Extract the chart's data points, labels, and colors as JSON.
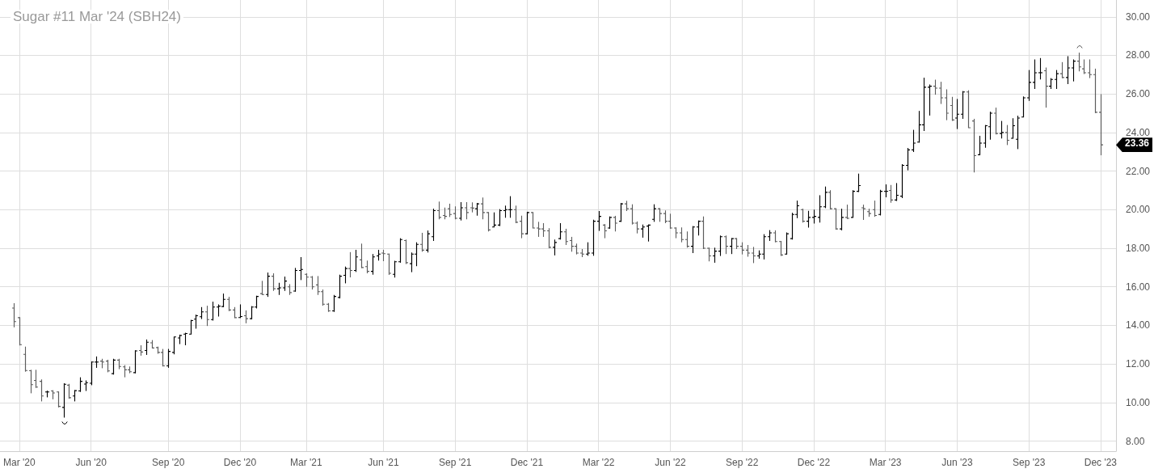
{
  "chart_data": {
    "type": "candlestick",
    "title": "Sugar #11 Mar '24 (SBH24)",
    "categories": [
      null,
      "Mar '20",
      null,
      null,
      null,
      null,
      null,
      null,
      null,
      null,
      null,
      null,
      null,
      null,
      "Jun '20",
      null,
      null,
      null,
      null,
      null,
      null,
      null,
      null,
      null,
      null,
      null,
      null,
      null,
      "Sep '20",
      null,
      null,
      null,
      null,
      null,
      null,
      null,
      null,
      null,
      null,
      null,
      null,
      "Dec '20",
      null,
      null,
      null,
      null,
      null,
      null,
      null,
      null,
      null,
      null,
      null,
      "Mar '21",
      null,
      null,
      null,
      null,
      null,
      null,
      null,
      null,
      null,
      null,
      null,
      null,
      null,
      "Jun '21",
      null,
      null,
      null,
      null,
      null,
      null,
      null,
      null,
      null,
      null,
      null,
      null,
      "Sep '21",
      null,
      null,
      null,
      null,
      null,
      null,
      null,
      null,
      null,
      null,
      null,
      null,
      "Dec '21",
      null,
      null,
      null,
      null,
      null,
      null,
      null,
      null,
      null,
      null,
      null,
      null,
      "Mar '22",
      null,
      null,
      null,
      null,
      null,
      null,
      null,
      null,
      null,
      null,
      null,
      null,
      "Jun '22",
      null,
      null,
      null,
      null,
      null,
      null,
      null,
      null,
      null,
      null,
      null,
      null,
      "Sep '22",
      null,
      null,
      null,
      null,
      null,
      null,
      null,
      null,
      null,
      null,
      null,
      null,
      "Dec '22",
      null,
      null,
      null,
      null,
      null,
      null,
      null,
      null,
      null,
      null,
      null,
      null,
      "Mar '23",
      null,
      null,
      null,
      null,
      null,
      null,
      null,
      null,
      null,
      null,
      null,
      null,
      "Jun '23",
      null,
      null,
      null,
      null,
      null,
      null,
      null,
      null,
      null,
      null,
      null,
      null,
      "Sep '23",
      null,
      null,
      null,
      null,
      null,
      null,
      null,
      null,
      null,
      null,
      null,
      null,
      "Dec '23"
    ],
    "ohlc": [
      [
        14.9,
        15.15,
        13.9,
        14.2
      ],
      [
        14.4,
        14.42,
        12.96,
        13.0
      ],
      [
        12.5,
        12.9,
        11.6,
        11.66
      ],
      [
        11.65,
        11.7,
        10.48,
        10.93
      ],
      [
        11.15,
        11.7,
        10.76,
        10.8
      ],
      [
        11.1,
        11.2,
        10.06,
        10.34
      ],
      [
        10.55,
        10.62,
        10.27,
        10.55
      ],
      [
        10.6,
        10.64,
        10.17,
        10.5
      ],
      [
        10.55,
        10.57,
        9.75,
        9.8
      ],
      [
        9.75,
        11.0,
        9.22,
        10.95
      ],
      [
        10.9,
        10.97,
        10.2,
        10.25
      ],
      [
        10.34,
        10.64,
        10.06,
        10.62
      ],
      [
        10.6,
        11.31,
        10.55,
        11.1
      ],
      [
        10.96,
        11.15,
        10.6,
        11.03
      ],
      [
        11.0,
        12.13,
        10.9,
        12.1
      ],
      [
        12.1,
        12.39,
        11.8,
        12.1
      ],
      [
        12.15,
        12.27,
        11.78,
        12.1
      ],
      [
        12.15,
        12.22,
        11.57,
        11.64
      ],
      [
        11.5,
        12.27,
        11.45,
        12.2
      ],
      [
        12.2,
        12.27,
        11.73,
        11.87
      ],
      [
        11.85,
        11.94,
        11.31,
        11.7
      ],
      [
        11.7,
        11.87,
        11.52,
        11.6
      ],
      [
        11.55,
        12.71,
        11.52,
        12.68
      ],
      [
        12.7,
        12.97,
        12.43,
        12.62
      ],
      [
        12.7,
        13.27,
        12.47,
        13.13
      ],
      [
        13.1,
        13.24,
        12.81,
        12.83
      ],
      [
        12.85,
        12.9,
        12.53,
        12.6
      ],
      [
        12.6,
        12.78,
        11.87,
        11.9
      ],
      [
        11.9,
        12.78,
        11.8,
        12.65
      ],
      [
        12.6,
        13.41,
        12.5,
        13.4
      ],
      [
        13.35,
        13.52,
        13.03,
        13.48
      ],
      [
        13.55,
        13.62,
        12.97,
        13.58
      ],
      [
        13.55,
        14.29,
        13.55,
        14.25
      ],
      [
        14.32,
        14.56,
        13.83,
        14.5
      ],
      [
        14.45,
        14.95,
        14.33,
        14.7
      ],
      [
        14.7,
        15.02,
        13.97,
        14.3
      ],
      [
        14.3,
        15.23,
        14.25,
        14.95
      ],
      [
        14.95,
        15.09,
        14.46,
        15.0
      ],
      [
        14.98,
        15.65,
        14.95,
        15.35
      ],
      [
        15.35,
        15.48,
        14.74,
        14.8
      ],
      [
        14.8,
        14.95,
        14.39,
        14.4
      ],
      [
        14.41,
        15.09,
        14.39,
        14.46
      ],
      [
        14.5,
        14.78,
        14.11,
        14.35
      ],
      [
        14.35,
        15.0,
        14.32,
        14.95
      ],
      [
        14.95,
        15.54,
        14.88,
        15.5
      ],
      [
        15.65,
        16.31,
        15.58,
        15.6
      ],
      [
        15.6,
        16.74,
        15.48,
        16.55
      ],
      [
        16.55,
        16.7,
        15.79,
        15.9
      ],
      [
        15.9,
        16.21,
        15.58,
        15.95
      ],
      [
        15.95,
        16.53,
        15.79,
        16.3
      ],
      [
        16.0,
        16.14,
        15.58,
        15.7
      ],
      [
        15.78,
        16.98,
        15.75,
        16.85
      ],
      [
        16.85,
        17.54,
        16.35,
        16.9
      ],
      [
        16.65,
        16.7,
        16.0,
        16.5
      ],
      [
        16.5,
        16.56,
        15.86,
        16.0
      ],
      [
        16.1,
        16.56,
        15.58,
        15.75
      ],
      [
        15.75,
        15.86,
        15.02,
        15.1
      ],
      [
        15.1,
        15.16,
        14.7,
        14.75
      ],
      [
        14.75,
        15.58,
        14.7,
        15.5
      ],
      [
        15.45,
        16.63,
        15.4,
        16.55
      ],
      [
        16.6,
        17.05,
        16.18,
        16.95
      ],
      [
        16.95,
        17.8,
        16.49,
        16.85
      ],
      [
        16.85,
        17.92,
        16.77,
        17.55
      ],
      [
        17.4,
        18.24,
        16.98,
        17.0
      ],
      [
        17.05,
        17.36,
        16.7,
        16.8
      ],
      [
        16.8,
        17.7,
        16.63,
        17.55
      ],
      [
        17.6,
        17.92,
        17.36,
        17.7
      ],
      [
        17.75,
        17.92,
        17.33,
        17.72
      ],
      [
        17.7,
        17.72,
        16.62,
        16.7
      ],
      [
        16.65,
        17.35,
        16.48,
        17.3
      ],
      [
        17.3,
        18.52,
        17.25,
        18.45
      ],
      [
        18.4,
        18.45,
        17.18,
        17.25
      ],
      [
        17.2,
        17.78,
        16.76,
        17.7
      ],
      [
        17.7,
        18.31,
        17.07,
        18.2
      ],
      [
        18.2,
        18.8,
        17.82,
        17.9
      ],
      [
        17.9,
        18.92,
        17.78,
        18.75
      ],
      [
        18.6,
        20.05,
        18.38,
        19.95
      ],
      [
        19.95,
        20.42,
        19.5,
        19.6
      ],
      [
        19.7,
        20.11,
        19.5,
        19.65
      ],
      [
        20.05,
        20.31,
        19.62,
        19.75
      ],
      [
        19.8,
        20.17,
        19.5,
        19.55
      ],
      [
        19.55,
        20.39,
        19.44,
        20.1
      ],
      [
        20.1,
        20.39,
        19.5,
        19.85
      ],
      [
        20.1,
        20.38,
        19.86,
        20.08
      ],
      [
        20.05,
        20.35,
        19.69,
        20.3
      ],
      [
        20.3,
        20.63,
        19.5,
        19.85
      ],
      [
        19.85,
        19.86,
        18.87,
        18.95
      ],
      [
        19.1,
        19.86,
        19.09,
        19.2
      ],
      [
        19.2,
        20.03,
        19.15,
        19.95
      ],
      [
        19.95,
        20.21,
        19.58,
        20.0
      ],
      [
        20.0,
        20.7,
        19.58,
        20.0
      ],
      [
        20.0,
        20.21,
        19.3,
        19.35
      ],
      [
        19.4,
        19.69,
        18.52,
        18.75
      ],
      [
        18.75,
        19.89,
        18.73,
        19.85
      ],
      [
        19.85,
        19.86,
        19.04,
        19.05
      ],
      [
        19.05,
        19.37,
        18.59,
        19.0
      ],
      [
        19.0,
        19.3,
        18.59,
        18.9
      ],
      [
        18.9,
        19.04,
        18.0,
        18.05
      ],
      [
        18.05,
        18.45,
        17.63,
        18.3
      ],
      [
        18.5,
        19.3,
        18.45,
        18.85
      ],
      [
        18.85,
        19.01,
        18.17,
        18.35
      ],
      [
        18.4,
        18.59,
        17.82,
        18.1
      ],
      [
        18.1,
        18.24,
        17.68,
        17.75
      ],
      [
        17.75,
        17.96,
        17.54,
        17.7
      ],
      [
        17.7,
        18.31,
        17.61,
        17.75
      ],
      [
        17.75,
        19.48,
        17.61,
        19.4
      ],
      [
        19.4,
        19.93,
        18.9,
        19.65
      ],
      [
        19.2,
        19.25,
        18.52,
        18.9
      ],
      [
        19.05,
        19.65,
        19.01,
        19.6
      ],
      [
        19.6,
        19.68,
        18.87,
        19.3
      ],
      [
        19.4,
        20.35,
        19.37,
        20.3
      ],
      [
        20.3,
        20.46,
        19.93,
        20.05
      ],
      [
        20.05,
        20.28,
        19.23,
        19.3
      ],
      [
        19.3,
        19.39,
        18.77,
        19.0
      ],
      [
        19.0,
        19.23,
        18.55,
        19.1
      ],
      [
        19.15,
        19.23,
        18.35,
        19.2
      ],
      [
        19.5,
        20.28,
        19.37,
        20.05
      ],
      [
        20.05,
        20.07,
        19.37,
        19.8
      ],
      [
        19.8,
        19.96,
        19.3,
        19.4
      ],
      [
        19.4,
        19.79,
        19.01,
        19.05
      ],
      [
        19.05,
        19.08,
        18.52,
        18.8
      ],
      [
        18.8,
        19.08,
        18.31,
        18.45
      ],
      [
        18.45,
        18.87,
        18.03,
        18.1
      ],
      [
        18.1,
        19.15,
        17.75,
        19.1
      ],
      [
        19.1,
        19.44,
        18.66,
        19.4
      ],
      [
        19.4,
        19.65,
        17.96,
        18.0
      ],
      [
        18.0,
        18.03,
        17.32,
        17.6
      ],
      [
        17.6,
        18.03,
        17.25,
        17.85
      ],
      [
        17.85,
        18.66,
        17.6,
        18.6
      ],
      [
        18.6,
        18.66,
        17.7,
        18.1
      ],
      [
        18.1,
        18.52,
        17.7,
        18.5
      ],
      [
        18.5,
        18.52,
        17.96,
        18.1
      ],
      [
        18.1,
        18.31,
        17.68,
        17.9
      ],
      [
        17.9,
        18.17,
        17.56,
        17.75
      ],
      [
        17.75,
        18.07,
        17.23,
        17.6
      ],
      [
        17.6,
        17.89,
        17.46,
        17.7
      ],
      [
        17.7,
        18.73,
        17.42,
        18.6
      ],
      [
        18.6,
        18.94,
        18.38,
        18.8
      ],
      [
        18.8,
        18.93,
        18.31,
        18.35
      ],
      [
        18.35,
        18.38,
        17.6,
        17.65
      ],
      [
        17.7,
        18.82,
        17.68,
        18.75
      ],
      [
        18.5,
        19.84,
        18.45,
        19.75
      ],
      [
        19.75,
        20.47,
        19.56,
        20.2
      ],
      [
        20.0,
        20.05,
        19.33,
        19.4
      ],
      [
        19.4,
        19.94,
        19.07,
        19.6
      ],
      [
        19.6,
        20.0,
        19.28,
        19.65
      ],
      [
        19.6,
        20.75,
        19.33,
        20.15
      ],
      [
        20.15,
        21.2,
        20.08,
        20.9
      ],
      [
        20.9,
        21.01,
        20.02,
        20.05
      ],
      [
        20.05,
        20.05,
        18.96,
        19.0
      ],
      [
        19.0,
        20.05,
        18.93,
        19.6
      ],
      [
        19.6,
        20.26,
        19.52,
        19.55
      ],
      [
        19.6,
        21.01,
        19.6,
        20.95
      ],
      [
        20.95,
        21.87,
        20.92,
        21.25
      ],
      [
        20.1,
        20.26,
        19.47,
        20.05
      ],
      [
        19.9,
        20.05,
        19.63,
        19.8
      ],
      [
        20.0,
        20.47,
        19.63,
        19.7
      ],
      [
        19.75,
        21.03,
        19.7,
        20.95
      ],
      [
        20.95,
        21.31,
        20.64,
        20.95
      ],
      [
        21.0,
        21.28,
        20.36,
        20.5
      ],
      [
        20.5,
        21.38,
        20.45,
        20.75
      ],
      [
        20.7,
        22.36,
        20.6,
        22.3
      ],
      [
        22.3,
        23.2,
        22.04,
        23.1
      ],
      [
        23.1,
        24.14,
        22.99,
        23.45
      ],
      [
        23.5,
        25.12,
        23.48,
        24.4
      ],
      [
        24.4,
        26.84,
        24.08,
        26.35
      ],
      [
        26.35,
        26.49,
        24.88,
        26.4
      ],
      [
        26.4,
        26.74,
        25.96,
        26.3
      ],
      [
        26.3,
        26.63,
        25.48,
        25.8
      ],
      [
        25.8,
        26.24,
        24.64,
        25.0
      ],
      [
        25.4,
        25.85,
        24.6,
        24.65
      ],
      [
        24.75,
        25.74,
        24.18,
        24.95
      ],
      [
        24.95,
        26.15,
        24.71,
        26.1
      ],
      [
        26.1,
        26.19,
        24.25,
        24.25
      ],
      [
        24.6,
        24.71,
        21.93,
        22.8
      ],
      [
        22.85,
        23.83,
        22.82,
        23.45
      ],
      [
        23.45,
        24.39,
        23.21,
        24.35
      ],
      [
        24.3,
        25.08,
        23.63,
        25.0
      ],
      [
        25.0,
        25.29,
        23.9,
        23.95
      ],
      [
        23.95,
        24.6,
        23.69,
        24.0
      ],
      [
        24.0,
        24.39,
        23.35,
        23.6
      ],
      [
        23.7,
        24.74,
        23.69,
        24.35
      ],
      [
        23.65,
        24.87,
        23.14,
        24.75
      ],
      [
        24.8,
        25.87,
        24.8,
        25.8
      ],
      [
        25.8,
        27.24,
        25.64,
        26.6
      ],
      [
        26.6,
        27.79,
        26.26,
        27.1
      ],
      [
        27.1,
        27.86,
        26.75,
        27.1
      ],
      [
        27.2,
        27.37,
        25.29,
        26.4
      ],
      [
        26.4,
        26.82,
        26.26,
        26.75
      ],
      [
        26.75,
        27.24,
        26.26,
        27.05
      ],
      [
        27.05,
        27.65,
        26.82,
        26.85
      ],
      [
        26.85,
        27.96,
        26.51,
        27.35
      ],
      [
        27.35,
        27.79,
        26.65,
        27.7
      ],
      [
        27.7,
        28.14,
        27.17,
        27.4
      ],
      [
        27.3,
        27.79,
        27.03,
        27.1
      ],
      [
        27.1,
        27.79,
        26.82,
        27.0
      ],
      [
        27.0,
        27.31,
        25.01,
        25.05
      ],
      [
        25.05,
        25.99,
        22.82,
        23.36
      ]
    ],
    "colors": [
      "#5c5c5c",
      "#5c5c5c",
      "#5c5c5c",
      "#5c5c5c",
      "#5c5c5c",
      "#5c5c5c",
      "#000000",
      "#5c5c5c",
      "#5c5c5c",
      "#000000",
      "#5c5c5c",
      "#000000",
      "#000000",
      "#000000",
      "#000000",
      "#000000",
      "#5c5c5c",
      "#5c5c5c",
      "#000000",
      "#5c5c5c",
      "#5c5c5c",
      "#5c5c5c",
      "#000000",
      "#5c5c5c",
      "#000000",
      "#5c5c5c",
      "#5c5c5c",
      "#5c5c5c",
      "#000000",
      "#000000",
      "#000000",
      "#000000",
      "#000000",
      "#000000",
      "#000000",
      "#5c5c5c",
      "#000000",
      "#000000",
      "#000000",
      "#5c5c5c",
      "#5c5c5c",
      "#000000",
      "#5c5c5c",
      "#000000",
      "#000000",
      "#5c5c5c",
      "#000000",
      "#5c5c5c",
      "#000000",
      "#000000",
      "#5c5c5c",
      "#000000",
      "#000000",
      "#5c5c5c",
      "#5c5c5c",
      "#5c5c5c",
      "#5c5c5c",
      "#5c5c5c",
      "#000000",
      "#000000",
      "#000000",
      "#5c5c5c",
      "#000000",
      "#5c5c5c",
      "#5c5c5c",
      "#000000",
      "#000000",
      "#5c5c5c",
      "#5c5c5c",
      "#000000",
      "#000000",
      "#5c5c5c",
      "#000000",
      "#000000",
      "#5c5c5c",
      "#000000",
      "#000000",
      "#5c5c5c",
      "#5c5c5c",
      "#5c5c5c",
      "#5c5c5c",
      "#000000",
      "#5c5c5c",
      "#5c5c5c",
      "#000000",
      "#5c5c5c",
      "#5c5c5c",
      "#000000",
      "#000000",
      "#000000",
      "#000000",
      "#5c5c5c",
      "#5c5c5c",
      "#000000",
      "#5c5c5c",
      "#5c5c5c",
      "#5c5c5c",
      "#5c5c5c",
      "#000000",
      "#000000",
      "#5c5c5c",
      "#5c5c5c",
      "#5c5c5c",
      "#5c5c5c",
      "#000000",
      "#000000",
      "#000000",
      "#5c5c5c",
      "#000000",
      "#5c5c5c",
      "#000000",
      "#5c5c5c",
      "#5c5c5c",
      "#5c5c5c",
      "#000000",
      "#000000",
      "#000000",
      "#5c5c5c",
      "#5c5c5c",
      "#5c5c5c",
      "#5c5c5c",
      "#5c5c5c",
      "#5c5c5c",
      "#000000",
      "#000000",
      "#5c5c5c",
      "#5c5c5c",
      "#000000",
      "#000000",
      "#5c5c5c",
      "#000000",
      "#5c5c5c",
      "#5c5c5c",
      "#5c5c5c",
      "#5c5c5c",
      "#000000",
      "#000000",
      "#000000",
      "#5c5c5c",
      "#5c5c5c",
      "#000000",
      "#000000",
      "#000000",
      "#5c5c5c",
      "#000000",
      "#000000",
      "#000000",
      "#000000",
      "#5c5c5c",
      "#5c5c5c",
      "#000000",
      "#5c5c5c",
      "#000000",
      "#000000",
      "#5c5c5c",
      "#5c5c5c",
      "#5c5c5c",
      "#000000",
      "#000000",
      "#5c5c5c",
      "#000000",
      "#000000",
      "#000000",
      "#000000",
      "#000000",
      "#000000",
      "#000000",
      "#5c5c5c",
      "#5c5c5c",
      "#5c5c5c",
      "#5c5c5c",
      "#000000",
      "#000000",
      "#5c5c5c",
      "#5c5c5c",
      "#000000",
      "#000000",
      "#000000",
      "#5c5c5c",
      "#000000",
      "#5c5c5c",
      "#000000",
      "#000000",
      "#000000",
      "#000000",
      "#000000",
      "#000000",
      "#5c5c5c",
      "#000000",
      "#000000",
      "#5c5c5c",
      "#000000",
      "#000000",
      "#5c5c5c",
      "#5c5c5c",
      "#5c5c5c",
      "#5c5c5c",
      "#5c5c5c"
    ],
    "ylim": [
      7.48,
      30.87
    ],
    "yticks": [
      {
        "value": 8,
        "label": "8.00"
      },
      {
        "value": 10,
        "label": "10.00"
      },
      {
        "value": 12,
        "label": "12.00"
      },
      {
        "value": 14,
        "label": "14.00"
      },
      {
        "value": 16,
        "label": "16.00"
      },
      {
        "value": 18,
        "label": "18.00"
      },
      {
        "value": 20,
        "label": "20.00"
      },
      {
        "value": 22,
        "label": "22.00"
      },
      {
        "value": 24,
        "label": "24.00"
      },
      {
        "value": 26,
        "label": "26.00"
      },
      {
        "value": 28,
        "label": "28.00"
      },
      {
        "value": 30,
        "label": "30.00"
      }
    ],
    "grid": true,
    "annotations": [
      "23.36"
    ]
  }
}
